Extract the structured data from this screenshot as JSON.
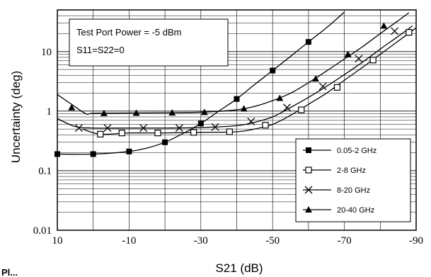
{
  "chart_data": {
    "type": "line",
    "xlabel": "S21 (dB)",
    "ylabel": "Uncertainty (deg)",
    "x_scale": "linear",
    "x_reversed": true,
    "xlim": [
      10,
      -90
    ],
    "y_scale": "log",
    "ylim": [
      0.01,
      50
    ],
    "grid": true,
    "x_ticks": [
      10,
      -10,
      -30,
      -50,
      -70,
      -90
    ],
    "x_tick_labels": [
      "10",
      "-10",
      "-30",
      "-50",
      "-70",
      "-90"
    ],
    "y_ticks": [
      0.01,
      0.1,
      1,
      10
    ],
    "y_tick_labels": [
      "0.01",
      "0.1",
      "1",
      "10"
    ],
    "annotation": [
      "Test Port Power = -5 dBm",
      "S11=S22=0"
    ],
    "legend_position": "bottom-right",
    "series": [
      {
        "name": "0.05-2 GHz",
        "marker": "filled-square",
        "curve": [
          [
            10,
            0.19
          ],
          [
            0,
            0.19
          ],
          [
            -10,
            0.21
          ],
          [
            -15,
            0.24
          ],
          [
            -20,
            0.3
          ],
          [
            -25,
            0.42
          ],
          [
            -30,
            0.62
          ],
          [
            -35,
            1.0
          ],
          [
            -40,
            1.6
          ],
          [
            -45,
            2.8
          ],
          [
            -50,
            4.8
          ],
          [
            -55,
            8.3
          ],
          [
            -60,
            14.5
          ],
          [
            -65,
            25
          ],
          [
            -70,
            46
          ]
        ],
        "markers": [
          [
            10,
            0.19
          ],
          [
            0,
            0.19
          ],
          [
            -10,
            0.21
          ],
          [
            -20,
            0.3
          ],
          [
            -30,
            0.62
          ],
          [
            -40,
            1.6
          ],
          [
            -50,
            4.8
          ],
          [
            -60,
            14.5
          ]
        ]
      },
      {
        "name": "2-8 GHz",
        "marker": "open-square",
        "curve": [
          [
            3,
            0.5
          ],
          [
            -2,
            0.41
          ],
          [
            -10,
            0.43
          ],
          [
            -20,
            0.43
          ],
          [
            -30,
            0.44
          ],
          [
            -40,
            0.45
          ],
          [
            -45,
            0.5
          ],
          [
            -50,
            0.6
          ],
          [
            -55,
            0.85
          ],
          [
            -60,
            1.3
          ],
          [
            -65,
            2.0
          ],
          [
            -70,
            3.3
          ],
          [
            -75,
            5.4
          ],
          [
            -80,
            9.0
          ],
          [
            -85,
            15
          ],
          [
            -90,
            25
          ]
        ],
        "markers": [
          [
            -2,
            0.41
          ],
          [
            -8,
            0.43
          ],
          [
            -18,
            0.43
          ],
          [
            -28,
            0.44
          ],
          [
            -38,
            0.45
          ],
          [
            -48,
            0.58
          ],
          [
            -58,
            1.05
          ],
          [
            -68,
            2.5
          ],
          [
            -78,
            7.2
          ],
          [
            -88,
            21
          ]
        ]
      },
      {
        "name": "8-20 GHz",
        "marker": "cross",
        "curve": [
          [
            10,
            0.75
          ],
          [
            5,
            0.55
          ],
          [
            0,
            0.52
          ],
          [
            -10,
            0.52
          ],
          [
            -20,
            0.52
          ],
          [
            -30,
            0.53
          ],
          [
            -40,
            0.57
          ],
          [
            -45,
            0.65
          ],
          [
            -50,
            0.8
          ],
          [
            -55,
            1.15
          ],
          [
            -60,
            1.7
          ],
          [
            -65,
            2.6
          ],
          [
            -70,
            4.1
          ],
          [
            -75,
            6.6
          ],
          [
            -80,
            11
          ],
          [
            -85,
            18
          ],
          [
            -89,
            27
          ]
        ],
        "markers": [
          [
            4,
            0.52
          ],
          [
            -4,
            0.52
          ],
          [
            -14,
            0.52
          ],
          [
            -24,
            0.52
          ],
          [
            -34,
            0.54
          ],
          [
            -44,
            0.67
          ],
          [
            -54,
            1.15
          ],
          [
            -64,
            2.6
          ],
          [
            -74,
            7.6
          ],
          [
            -84,
            22
          ]
        ]
      },
      {
        "name": "20-40 GHz",
        "marker": "filled-triangle",
        "curve": [
          [
            10,
            1.9
          ],
          [
            6,
            1.3
          ],
          [
            2,
            0.9
          ],
          [
            0,
            0.92
          ],
          [
            -10,
            0.93
          ],
          [
            -20,
            0.94
          ],
          [
            -30,
            0.96
          ],
          [
            -40,
            1.05
          ],
          [
            -45,
            1.2
          ],
          [
            -50,
            1.5
          ],
          [
            -55,
            2.0
          ],
          [
            -60,
            3.0
          ],
          [
            -65,
            4.7
          ],
          [
            -70,
            7.5
          ],
          [
            -75,
            12
          ],
          [
            -80,
            20
          ],
          [
            -85,
            33
          ],
          [
            -88,
            45
          ]
        ],
        "markers": [
          [
            6,
            1.15
          ],
          [
            -3,
            0.92
          ],
          [
            -12,
            0.93
          ],
          [
            -22,
            0.94
          ],
          [
            -31,
            0.96
          ],
          [
            -42,
            1.1
          ],
          [
            -52,
            1.65
          ],
          [
            -62,
            3.5
          ],
          [
            -71,
            9
          ],
          [
            -81,
            27
          ]
        ]
      }
    ]
  },
  "page_fragment": "Pl..."
}
